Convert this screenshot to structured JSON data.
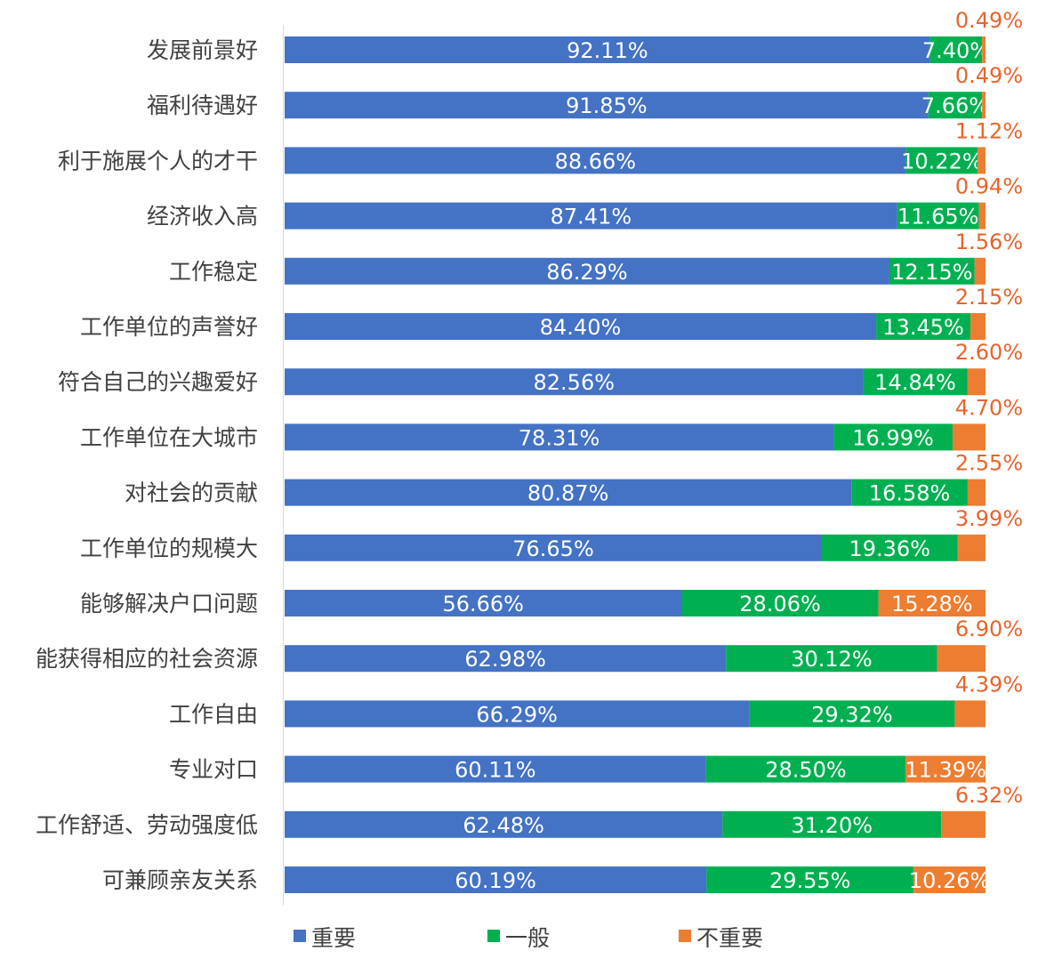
{
  "chart_data": {
    "type": "bar",
    "orientation": "horizontal",
    "stacked": true,
    "title": "",
    "xlabel": "",
    "ylabel": "",
    "xlim": [
      0,
      100
    ],
    "grid": false,
    "legend_position": "bottom",
    "categories": [
      "发展前景好",
      "福利待遇好",
      "利于施展个人的才干",
      "经济收入高",
      "工作稳定",
      "工作单位的声誉好",
      "符合自己的兴趣爱好",
      "工作单位在大城市",
      "对社会的贡献",
      "工作单位的规模大",
      "能够解决户口问题",
      "能获得相应的社会资源",
      "工作自由",
      "专业对口",
      "工作舒适、劳动强度低",
      "可兼顾亲友关系"
    ],
    "series": [
      {
        "name": "重要",
        "color": "#4472c4",
        "values": [
          92.11,
          91.85,
          88.66,
          87.41,
          86.29,
          84.4,
          82.56,
          78.31,
          80.87,
          76.65,
          56.66,
          62.98,
          66.29,
          60.11,
          62.48,
          60.19
        ]
      },
      {
        "name": "一般",
        "color": "#00b050",
        "values": [
          7.4,
          7.66,
          10.22,
          11.65,
          12.15,
          13.45,
          14.84,
          16.99,
          16.58,
          19.36,
          28.06,
          30.12,
          29.32,
          28.5,
          31.2,
          29.55
        ]
      },
      {
        "name": "不重要",
        "color": "#ed7d31",
        "values": [
          0.49,
          0.49,
          1.12,
          0.94,
          1.56,
          2.15,
          2.6,
          4.7,
          2.55,
          3.99,
          15.28,
          6.9,
          4.39,
          11.39,
          6.32,
          10.26
        ]
      }
    ],
    "data_label_format": "percent, 2 decimals"
  }
}
